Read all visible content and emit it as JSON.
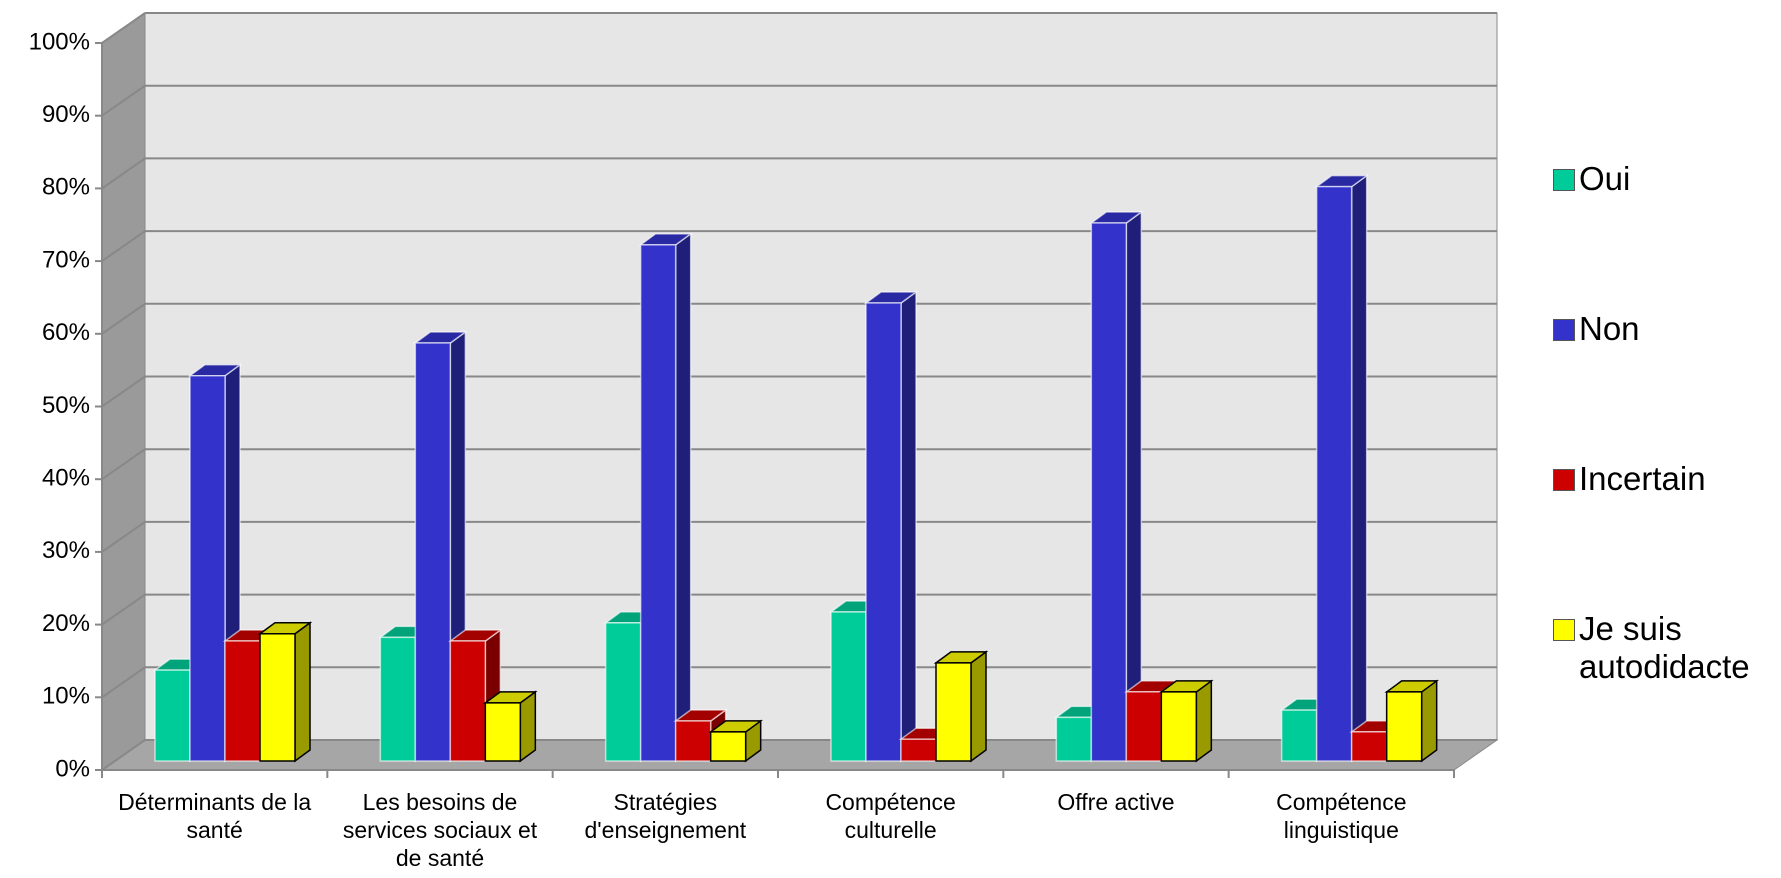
{
  "chart_data": {
    "type": "bar3d",
    "categories": [
      "Déterminants de la santé",
      "Les besoins de services sociaux et de santé",
      "Stratégies d'enseignement",
      "Compétence culturelle",
      "Offre active",
      "Compétence linguistique"
    ],
    "series": [
      {
        "name": "Oui",
        "color": "#00cc99",
        "values": [
          12.5,
          17,
          19,
          20.5,
          6,
          7
        ]
      },
      {
        "name": "Non",
        "color": "#3333cc",
        "values": [
          53,
          57.5,
          71,
          63,
          74,
          79
        ]
      },
      {
        "name": "Incertain",
        "color": "#cc0000",
        "values": [
          16.5,
          16.5,
          5.5,
          3,
          9.5,
          4
        ]
      },
      {
        "name": "Je suis autodidacte",
        "color": "#ffff00",
        "values": [
          17.5,
          8,
          4,
          13.5,
          9.5,
          9.5
        ]
      }
    ],
    "ylim": [
      0,
      100
    ],
    "yticks": [
      {
        "value": 0,
        "label": "0%"
      },
      {
        "value": 10,
        "label": "10%"
      },
      {
        "value": 20,
        "label": "20%"
      },
      {
        "value": 30,
        "label": "30%"
      },
      {
        "value": 40,
        "label": "40%"
      },
      {
        "value": 50,
        "label": "50%"
      },
      {
        "value": 60,
        "label": "60%"
      },
      {
        "value": 70,
        "label": "70%"
      },
      {
        "value": 80,
        "label": "80%"
      },
      {
        "value": 90,
        "label": "90%"
      },
      {
        "value": 100,
        "label": "100%"
      }
    ],
    "grid": true,
    "legend": "right"
  }
}
